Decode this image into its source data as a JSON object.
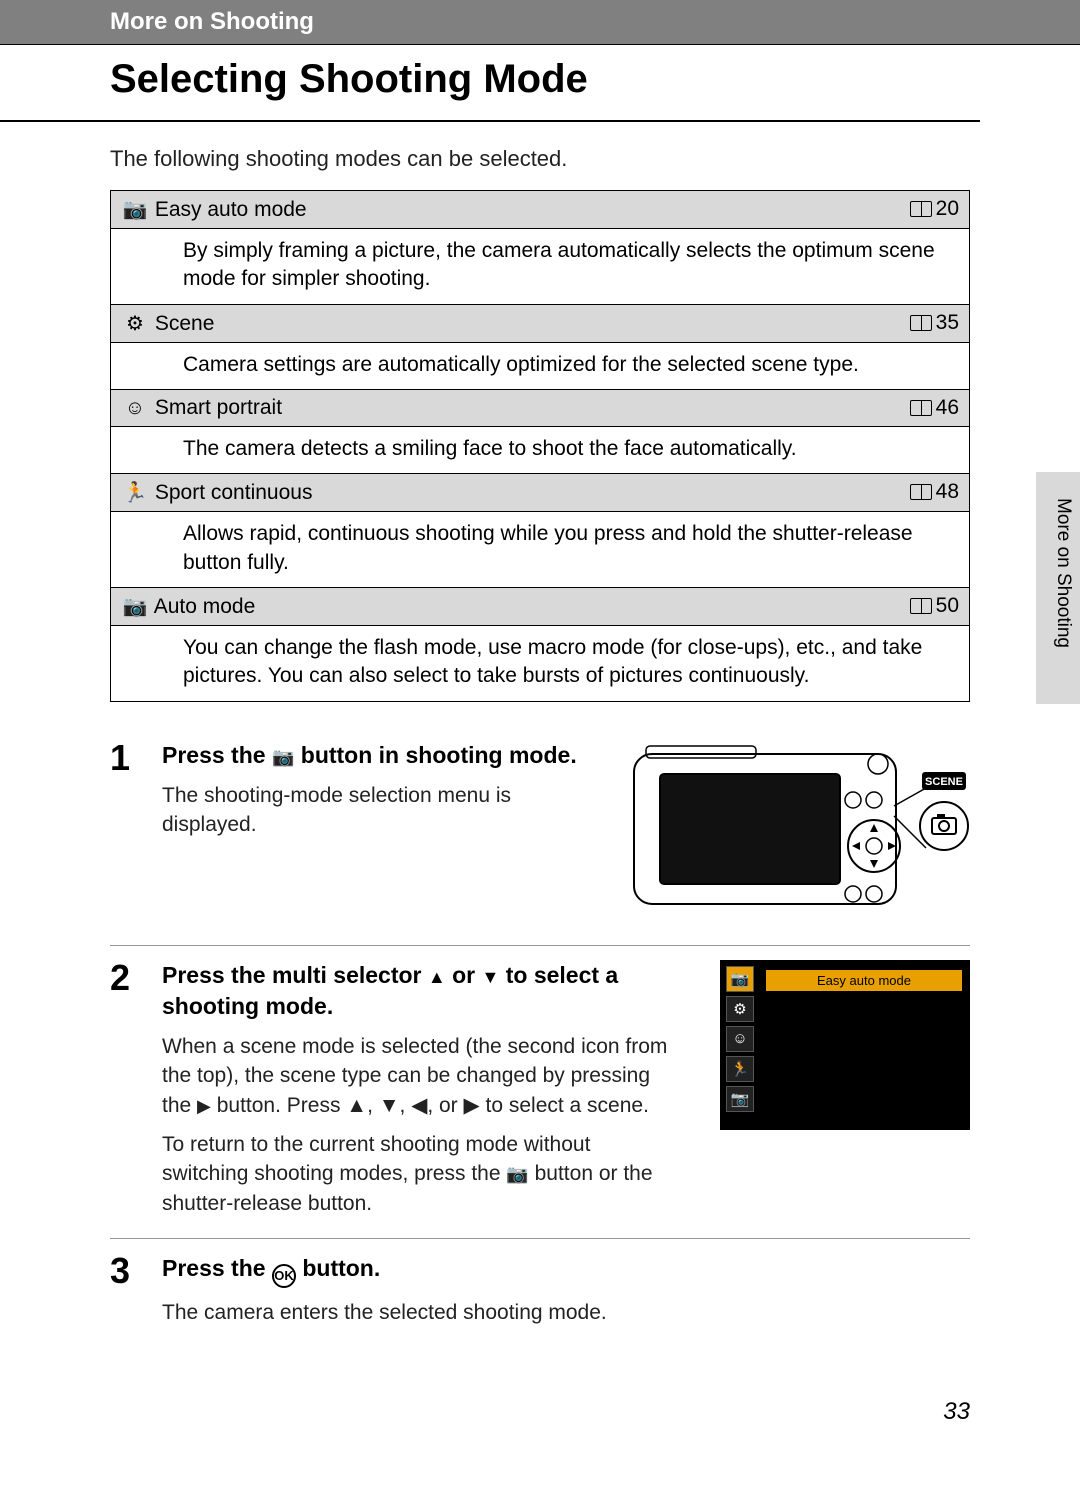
{
  "section_header": "More on Shooting",
  "page_title": "Selecting Shooting Mode",
  "intro": "The following shooting modes can be selected.",
  "modes": [
    {
      "icon": "easy-auto-icon",
      "glyph": "📷",
      "name": "Easy auto mode",
      "page": "20",
      "desc": "By simply framing a picture, the camera automatically selects the optimum scene mode for simpler shooting."
    },
    {
      "icon": "scene-icon",
      "glyph": "⚙",
      "name": "Scene",
      "page": "35",
      "desc": "Camera settings are automatically optimized for the selected scene type."
    },
    {
      "icon": "smart-portrait-icon",
      "glyph": "☺",
      "name": "Smart portrait",
      "page": "46",
      "desc": "The camera detects a smiling face to shoot the face automatically."
    },
    {
      "icon": "sport-continuous-icon",
      "glyph": "🏃",
      "name": "Sport continuous",
      "page": "48",
      "desc": "Allows rapid, continuous shooting while you press and hold the shutter-release button fully."
    },
    {
      "icon": "auto-mode-icon",
      "glyph": "📷",
      "name": "Auto mode",
      "page": "50",
      "desc": "You can change the flash mode, use macro mode (for close-ups), etc., and take pictures. You can also select to take bursts of pictures continuously."
    }
  ],
  "steps": {
    "s1": {
      "num": "1",
      "title_pre": "Press the ",
      "title_post": " button in shooting mode.",
      "text": "The shooting-mode selection menu is displayed.",
      "badge_scene": "SCENE"
    },
    "s2": {
      "num": "2",
      "title_pre": "Press the multi selector ",
      "title_mid": " or ",
      "title_post": " to select a shooting mode.",
      "text1_pre": "When a scene mode is selected (the second icon from the top), the scene type can be changed by pressing the ",
      "text1_mid": " button. Press ",
      "text1_post": " to select a scene.",
      "arrows_seq": "▲, ▼, ◀, or ▶",
      "text2_pre": "To return to the current shooting mode without switching shooting modes, press the ",
      "text2_post": " button or the shutter-release button.",
      "menu_label": "Easy auto mode"
    },
    "s3": {
      "num": "3",
      "title_pre": "Press the ",
      "title_post": " button.",
      "text": "The camera enters the selected shooting mode."
    }
  },
  "side_label": "More on Shooting",
  "page_number": "33",
  "colors": {
    "header_bg": "#808080",
    "row_head_bg": "#d9d9d9",
    "menu_highlight": "#e8a000"
  }
}
